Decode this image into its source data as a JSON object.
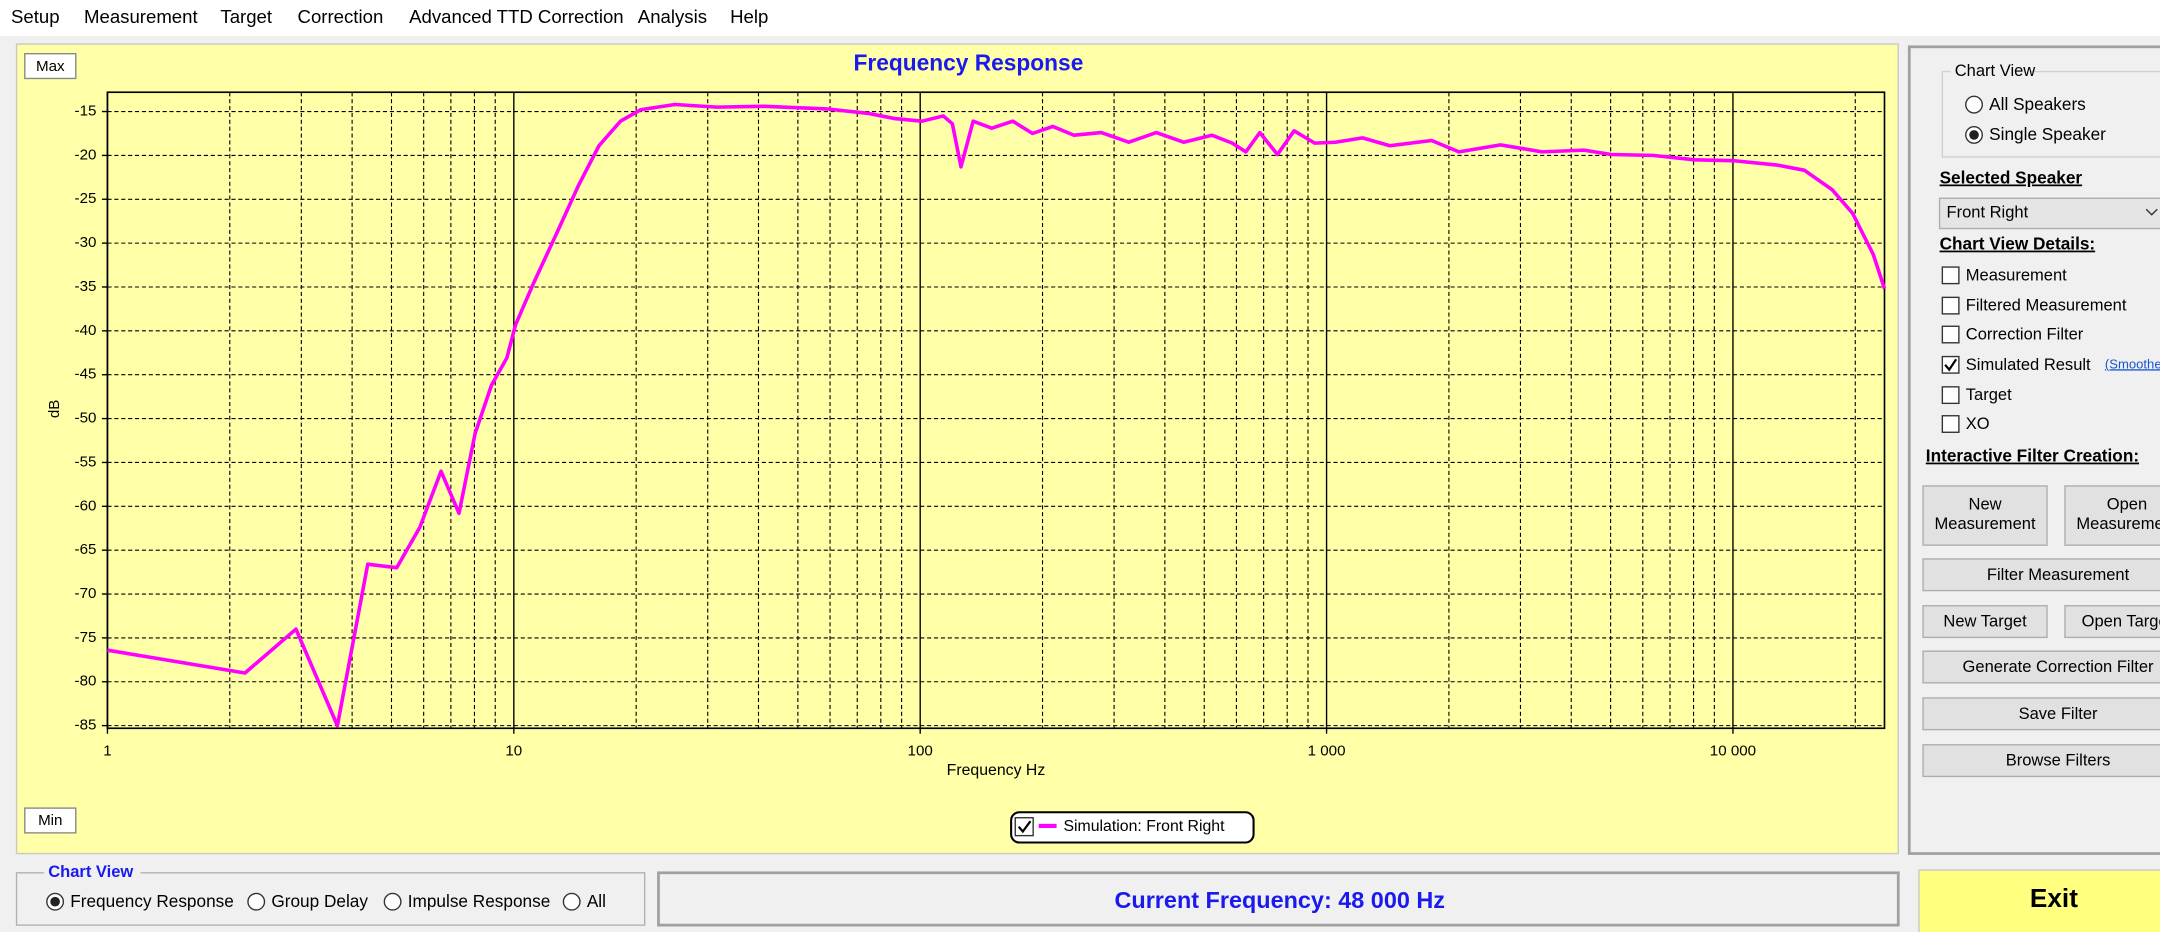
{
  "menu": [
    "Setup",
    "Measurement",
    "Target",
    "Correction",
    "Advanced TTD Correction",
    "Analysis",
    "Help"
  ],
  "chart_buttons": {
    "max": "Max",
    "min": "Min"
  },
  "chart_data": {
    "type": "line",
    "title": "Frequency Response",
    "x_label": "Frequency Hz",
    "y_label": "dB",
    "x_scale": "log",
    "grid": true,
    "xlim": [
      1,
      23600
    ],
    "ylim": [
      -85.3,
      -12.8
    ],
    "xticks": [
      1,
      10,
      100,
      {
        "value": 1000,
        "label": "1 000"
      },
      {
        "value": 10000,
        "label": "10 000"
      }
    ],
    "xminorticks": [
      2,
      3,
      4,
      5,
      6,
      7,
      8,
      9,
      20,
      30,
      40,
      50,
      60,
      70,
      80,
      90,
      200,
      300,
      400,
      500,
      600,
      700,
      800,
      900,
      2000,
      3000,
      4000,
      5000,
      6000,
      7000,
      8000,
      9000,
      20000
    ],
    "yticks": [
      -15,
      -20,
      -25,
      -30,
      -35,
      -40,
      -45,
      -50,
      -55,
      -60,
      -65,
      -70,
      -75,
      -80,
      -85
    ],
    "x": [
      1,
      2.18,
      2.91,
      3.68,
      4.37,
      5.15,
      5.87,
      6.62,
      7.33,
      8.03,
      8.81,
      9.61,
      10.1,
      11.2,
      12.8,
      14.4,
      16.2,
      18.3,
      20.5,
      24.9,
      31.6,
      41.4,
      58.8,
      74.2,
      86.6,
      101,
      114,
      120,
      126,
      135,
      150,
      169,
      189,
      212,
      239,
      279,
      326,
      381,
      445,
      522,
      586,
      633,
      685,
      757,
      832,
      935,
      1051,
      1226,
      1432,
      1813,
      2117,
      2679,
      3392,
      4295,
      5016,
      6352,
      8044,
      10000,
      12840,
      15000,
      17530,
      19700,
      22150,
      23600
    ],
    "series": [
      {
        "name": "Simulation: Front Right",
        "color": "#ff00ff",
        "legend_checked": true,
        "values": [
          -76.4,
          -79.0,
          -74.0,
          -85.0,
          -66.6,
          -67.0,
          -62.4,
          -56.0,
          -60.8,
          -51.7,
          -46.2,
          -43.1,
          -39.3,
          -34.5,
          -28.7,
          -23.5,
          -18.9,
          -16.1,
          -14.8,
          -14.2,
          -14.5,
          -14.4,
          -14.7,
          -15.2,
          -15.8,
          -16.1,
          -15.5,
          -16.4,
          -21.3,
          -16.1,
          -16.9,
          -16.1,
          -17.5,
          -16.7,
          -17.7,
          -17.4,
          -18.5,
          -17.4,
          -18.5,
          -17.7,
          -18.6,
          -19.6,
          -17.4,
          -19.9,
          -17.2,
          -18.6,
          -18.5,
          -18.0,
          -18.9,
          -18.3,
          -19.6,
          -18.8,
          -19.6,
          -19.4,
          -19.9,
          -20.0,
          -20.5,
          -20.6,
          -21.1,
          -21.7,
          -23.9,
          -26.6,
          -31.3,
          -35.2
        ]
      }
    ]
  },
  "side_panel": {
    "chart_view_title": "Chart View",
    "chart_view_options": [
      {
        "label": "All Speakers",
        "selected": false
      },
      {
        "label": "Single Speaker",
        "selected": true
      }
    ],
    "selected_speaker_title": "Selected Speaker",
    "selected_speaker": "Front Right",
    "details_title": "Chart View Details:",
    "details": [
      {
        "label": "Measurement",
        "checked": false
      },
      {
        "label": "Filtered Measurement",
        "checked": false
      },
      {
        "label": "Correction Filter",
        "checked": false
      },
      {
        "label": "Simulated Result",
        "checked": true
      },
      {
        "label": "Target",
        "checked": false
      },
      {
        "label": "XO",
        "checked": false
      }
    ],
    "smoothed_link": "(Smoothed)",
    "interactive_title": "Interactive Filter Creation:",
    "new_measurement": [
      "New",
      "Measurement"
    ],
    "open_measurement": [
      "Open",
      "Measurement"
    ],
    "filter_measurement": "Filter Measurement",
    "new_target": "New Target",
    "open_target": "Open Target",
    "generate_correction_filter": "Generate Correction Filter",
    "save_filter": "Save Filter",
    "browse_filters": "Browse Filters"
  },
  "bottom": {
    "chart_view_title": "Chart View",
    "chart_view_options": [
      {
        "label": "Frequency Response",
        "selected": true
      },
      {
        "label": "Group Delay",
        "selected": false
      },
      {
        "label": "Impulse Response",
        "selected": false
      },
      {
        "label": "All",
        "selected": false
      }
    ],
    "status": "Current Frequency: 48 000 Hz",
    "exit": "Exit"
  }
}
